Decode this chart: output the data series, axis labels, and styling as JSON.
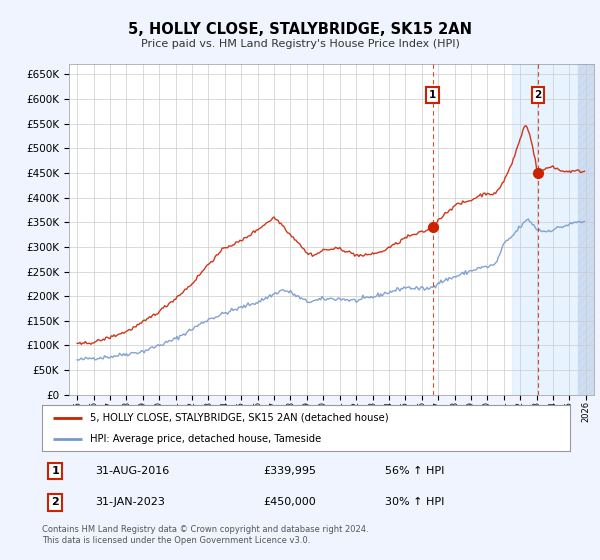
{
  "title": "5, HOLLY CLOSE, STALYBRIDGE, SK15 2AN",
  "subtitle": "Price paid vs. HM Land Registry's House Price Index (HPI)",
  "hpi_color": "#7799cc",
  "price_color": "#cc2200",
  "annotation1_date": 2016.67,
  "annotation1_price": 339995,
  "annotation2_date": 2023.08,
  "annotation2_price": 450000,
  "legend_price_label": "5, HOLLY CLOSE, STALYBRIDGE, SK15 2AN (detached house)",
  "legend_hpi_label": "HPI: Average price, detached house, Tameside",
  "ann1_label": "31-AUG-2016",
  "ann1_price_str": "£339,995",
  "ann1_hpi_str": "56% ↑ HPI",
  "ann2_label": "31-JAN-2023",
  "ann2_price_str": "£450,000",
  "ann2_hpi_str": "30% ↑ HPI",
  "footer": "Contains HM Land Registry data © Crown copyright and database right 2024.\nThis data is licensed under the Open Government Licence v3.0.",
  "bg_color": "#f0f4ff",
  "plot_bg": "#ffffff",
  "shade_color": "#ddeeff",
  "yticks": [
    0,
    50000,
    100000,
    150000,
    200000,
    250000,
    300000,
    350000,
    400000,
    450000,
    500000,
    550000,
    600000,
    650000
  ]
}
